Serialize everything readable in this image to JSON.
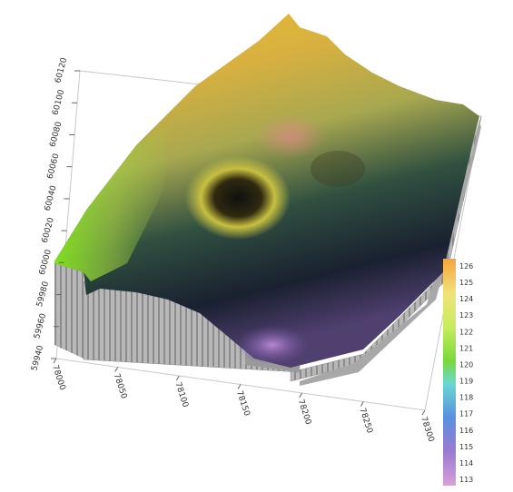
{
  "chart_data": {
    "type": "surface3d",
    "title": "",
    "x_axis": {
      "label": "",
      "ticks": [
        "78000",
        "78050",
        "78100",
        "78150",
        "78200",
        "78250",
        "78300"
      ]
    },
    "y_axis": {
      "label": "",
      "ticks": [
        "59940",
        "59960",
        "59980",
        "60000",
        "60020",
        "60040",
        "60060",
        "60080",
        "60100",
        "60120"
      ]
    },
    "colorbar": {
      "ticks": [
        126,
        125,
        124,
        123,
        122,
        121,
        120,
        119,
        118,
        117,
        116,
        115,
        114,
        113
      ],
      "range": [
        113,
        126
      ],
      "colors": [
        "#f4a43a",
        "#f6c85a",
        "#f2e27a",
        "#e6f07a",
        "#b8ea4a",
        "#7ad83a",
        "#5ad070",
        "#6ad8d0",
        "#5aa8e4",
        "#6a80d8",
        "#8a78d0",
        "#a880cc",
        "#c48ad0",
        "#d8a0d8"
      ]
    },
    "surface_features": [
      "central-crater-depression",
      "high-ridge-top",
      "low-basin-bottom"
    ]
  }
}
